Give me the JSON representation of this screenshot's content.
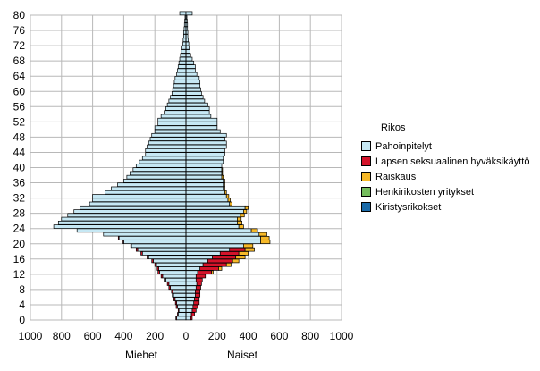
{
  "chart_data": {
    "type": "bar",
    "orientation": "horizontal-population-pyramid",
    "xlim": [
      -1000,
      1000
    ],
    "ylim": [
      0,
      80
    ],
    "x_ticks": [
      "1000",
      "800",
      "600",
      "400",
      "200",
      "0",
      "200",
      "400",
      "600",
      "800",
      "1000"
    ],
    "y_ticks": [
      "0",
      "4",
      "8",
      "12",
      "16",
      "20",
      "24",
      "28",
      "32",
      "36",
      "40",
      "44",
      "48",
      "52",
      "56",
      "60",
      "64",
      "68",
      "72",
      "76",
      "80"
    ],
    "left_label": "Miehet",
    "right_label": "Naiset",
    "legend_title": "Rikos",
    "legend_placement": "right",
    "grid": true,
    "series": [
      {
        "name": "Pahoinpitelyt",
        "color": "#c6e8f4"
      },
      {
        "name": "Lapsen seksuaalinen hyväksikäyttö",
        "color": "#d4132a"
      },
      {
        "name": "Raiskaus",
        "color": "#f7b928"
      },
      {
        "name": "Henkirikosten yritykset",
        "color": "#74bc5c"
      },
      {
        "name": "Kiristysrikokset",
        "color": "#1a6aa8"
      }
    ],
    "ages": [
      0,
      1,
      2,
      3,
      4,
      5,
      6,
      7,
      8,
      9,
      10,
      11,
      12,
      13,
      14,
      15,
      16,
      17,
      18,
      19,
      20,
      21,
      22,
      23,
      24,
      25,
      26,
      27,
      28,
      29,
      30,
      31,
      32,
      33,
      34,
      35,
      36,
      37,
      38,
      39,
      40,
      41,
      42,
      43,
      44,
      45,
      46,
      47,
      48,
      49,
      50,
      51,
      52,
      53,
      54,
      55,
      56,
      57,
      58,
      59,
      60,
      61,
      62,
      63,
      64,
      65,
      66,
      67,
      68,
      69,
      70,
      71,
      72,
      73,
      74,
      75,
      76,
      77,
      78,
      79,
      80
    ],
    "men": {
      "Pahoinpitelyt": [
        60,
        50,
        45,
        55,
        60,
        70,
        80,
        85,
        100,
        110,
        130,
        150,
        170,
        175,
        190,
        210,
        240,
        280,
        310,
        350,
        400,
        430,
        530,
        700,
        850,
        820,
        800,
        760,
        720,
        680,
        620,
        600,
        600,
        520,
        480,
        440,
        400,
        380,
        360,
        340,
        320,
        300,
        280,
        260,
        260,
        250,
        240,
        230,
        220,
        200,
        200,
        180,
        180,
        160,
        140,
        130,
        120,
        110,
        100,
        90,
        85,
        80,
        75,
        70,
        60,
        55,
        50,
        45,
        40,
        35,
        30,
        25,
        20,
        18,
        15,
        15,
        12,
        10,
        8,
        6,
        40
      ],
      "Lapsen seksuaalinen hyväksikäyttö": [
        5,
        5,
        5,
        8,
        8,
        8,
        8,
        8,
        10,
        10,
        10,
        10,
        10,
        10,
        10,
        10,
        10,
        10,
        10,
        5,
        5,
        5,
        0,
        0,
        0,
        0,
        0,
        0,
        0,
        0,
        0,
        0,
        0,
        0,
        0,
        0,
        0,
        0,
        0,
        0,
        0,
        0,
        0,
        0,
        0,
        0,
        0,
        0,
        0,
        0,
        0,
        0,
        0,
        0,
        0,
        0,
        0,
        0,
        0,
        0,
        0,
        0,
        0,
        0,
        0,
        0,
        0,
        0,
        0,
        0,
        0,
        0,
        0,
        0,
        0,
        0,
        0,
        0,
        0,
        0,
        0
      ],
      "Raiskaus": [
        0,
        0,
        0,
        0,
        0,
        0,
        0,
        0,
        0,
        0,
        0,
        0,
        0,
        0,
        0,
        0,
        0,
        0,
        0,
        0,
        0,
        0,
        0,
        0,
        0,
        0,
        0,
        0,
        0,
        0,
        0,
        0,
        0,
        0,
        0,
        0,
        0,
        0,
        0,
        0,
        0,
        0,
        0,
        0,
        0,
        0,
        0,
        0,
        0,
        0,
        0,
        0,
        0,
        0,
        0,
        0,
        0,
        0,
        0,
        0,
        0,
        0,
        0,
        0,
        0,
        0,
        0,
        0,
        0,
        0,
        0,
        0,
        0,
        0,
        0,
        0,
        0,
        0,
        0,
        0,
        0
      ],
      "Henkirikosten yritykset": [
        0,
        0,
        0,
        0,
        0,
        0,
        0,
        0,
        0,
        0,
        0,
        0,
        0,
        0,
        0,
        0,
        0,
        0,
        0,
        0,
        0,
        0,
        0,
        0,
        0,
        0,
        0,
        0,
        0,
        0,
        0,
        0,
        0,
        0,
        0,
        0,
        0,
        0,
        0,
        0,
        0,
        0,
        0,
        0,
        0,
        0,
        0,
        0,
        0,
        0,
        0,
        0,
        0,
        0,
        0,
        0,
        0,
        0,
        0,
        0,
        0,
        0,
        0,
        0,
        0,
        0,
        0,
        0,
        0,
        0,
        0,
        0,
        0,
        0,
        0,
        0,
        0,
        0,
        0,
        0,
        0
      ],
      "Kiristysrikokset": [
        0,
        0,
        0,
        0,
        0,
        0,
        0,
        0,
        0,
        0,
        0,
        0,
        0,
        0,
        0,
        0,
        0,
        0,
        0,
        0,
        0,
        0,
        0,
        0,
        0,
        0,
        0,
        0,
        0,
        0,
        0,
        0,
        0,
        0,
        0,
        0,
        0,
        0,
        0,
        0,
        0,
        0,
        0,
        0,
        0,
        0,
        0,
        0,
        0,
        0,
        0,
        0,
        0,
        0,
        0,
        0,
        0,
        0,
        0,
        0,
        0,
        0,
        0,
        0,
        0,
        0,
        0,
        0,
        0,
        0,
        0,
        0,
        0,
        0,
        0,
        0,
        0,
        0,
        0,
        0,
        0
      ]
    },
    "women": {
      "Pahoinpitelyt": [
        30,
        35,
        40,
        45,
        50,
        55,
        60,
        60,
        65,
        70,
        65,
        65,
        75,
        90,
        110,
        140,
        170,
        220,
        280,
        370,
        480,
        480,
        470,
        420,
        340,
        330,
        330,
        350,
        370,
        380,
        280,
        270,
        260,
        250,
        240,
        240,
        240,
        230,
        230,
        230,
        230,
        240,
        240,
        250,
        250,
        260,
        260,
        250,
        260,
        220,
        200,
        200,
        200,
        160,
        150,
        150,
        140,
        120,
        110,
        100,
        95,
        90,
        90,
        85,
        70,
        60,
        60,
        50,
        40,
        30,
        25,
        20,
        18,
        15,
        12,
        12,
        10,
        10,
        8,
        6,
        40
      ],
      "Lapsen seksuaalinen hyväksikäyttö": [
        10,
        20,
        25,
        30,
        35,
        30,
        30,
        30,
        30,
        30,
        40,
        60,
        90,
        120,
        150,
        160,
        150,
        120,
        100,
        0,
        0,
        0,
        0,
        0,
        0,
        0,
        0,
        0,
        0,
        0,
        0,
        0,
        0,
        0,
        0,
        0,
        0,
        0,
        0,
        0,
        0,
        0,
        0,
        0,
        0,
        0,
        0,
        0,
        0,
        0,
        0,
        0,
        0,
        0,
        0,
        0,
        0,
        0,
        0,
        0,
        0,
        0,
        0,
        0,
        0,
        0,
        0,
        0,
        0,
        0,
        0,
        0,
        0,
        0,
        0,
        0,
        0,
        0,
        0,
        0,
        0
      ],
      "Raiskaus": [
        0,
        0,
        0,
        0,
        0,
        0,
        0,
        0,
        0,
        0,
        0,
        0,
        10,
        20,
        30,
        40,
        60,
        60,
        60,
        60,
        60,
        55,
        50,
        40,
        30,
        30,
        25,
        25,
        20,
        20,
        15,
        15,
        15,
        10,
        10,
        10,
        10,
        10,
        5,
        5,
        0,
        0,
        0,
        0,
        0,
        0,
        0,
        0,
        0,
        0,
        0,
        0,
        0,
        0,
        0,
        0,
        0,
        0,
        0,
        0,
        0,
        0,
        0,
        0,
        0,
        0,
        0,
        0,
        0,
        0,
        0,
        0,
        0,
        0,
        0,
        0,
        0,
        0,
        0,
        0,
        0
      ],
      "Henkirikosten yritykset": [
        0,
        0,
        0,
        0,
        0,
        0,
        0,
        0,
        0,
        0,
        0,
        0,
        0,
        0,
        0,
        0,
        0,
        0,
        0,
        0,
        0,
        0,
        0,
        0,
        0,
        0,
        0,
        0,
        0,
        0,
        0,
        0,
        0,
        0,
        0,
        0,
        0,
        0,
        0,
        0,
        0,
        0,
        0,
        0,
        0,
        0,
        0,
        0,
        0,
        0,
        0,
        0,
        0,
        0,
        0,
        0,
        0,
        0,
        0,
        0,
        0,
        0,
        0,
        0,
        0,
        0,
        0,
        0,
        0,
        0,
        0,
        0,
        0,
        0,
        0,
        0,
        0,
        0,
        0,
        0,
        0
      ],
      "Kiristysrikokset": [
        0,
        0,
        0,
        0,
        0,
        0,
        0,
        0,
        0,
        0,
        0,
        0,
        0,
        0,
        0,
        0,
        0,
        0,
        0,
        0,
        0,
        0,
        0,
        0,
        0,
        0,
        0,
        0,
        0,
        0,
        0,
        0,
        0,
        0,
        0,
        0,
        0,
        0,
        0,
        0,
        0,
        0,
        0,
        0,
        0,
        0,
        0,
        0,
        0,
        0,
        0,
        0,
        0,
        0,
        0,
        0,
        0,
        0,
        0,
        0,
        0,
        0,
        0,
        0,
        0,
        0,
        0,
        0,
        0,
        0,
        0,
        0,
        0,
        0,
        0,
        0,
        0,
        0,
        0,
        0,
        0
      ]
    }
  }
}
